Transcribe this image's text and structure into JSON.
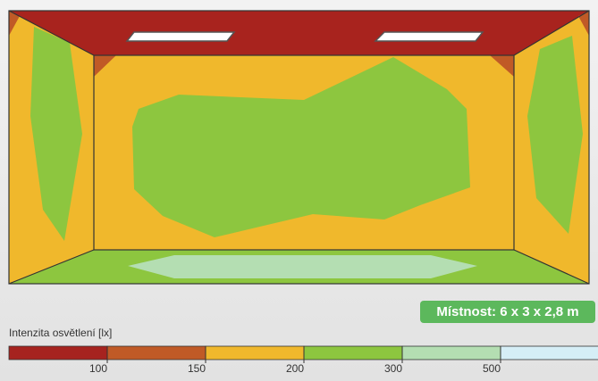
{
  "room_label": "Místnost: 6 x 3 x 2,8 m",
  "legend": {
    "title": "Intenzita osvětlení [lx]",
    "ticks": [
      100,
      150,
      200,
      300,
      500
    ],
    "colors": [
      "#a6231f",
      "#c05a26",
      "#f0b82c",
      "#8dc63f",
      "#b4deb2",
      "#d5eef6"
    ]
  }
}
